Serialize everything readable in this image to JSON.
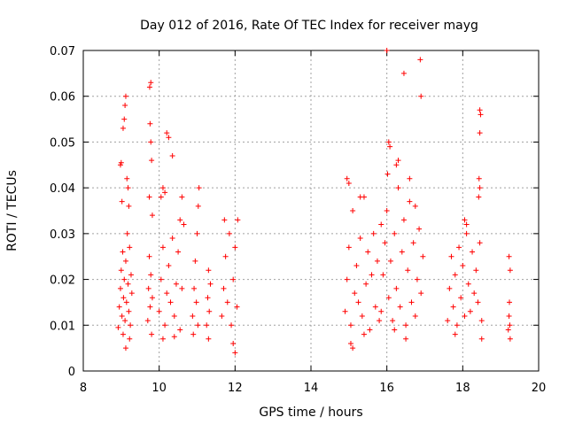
{
  "chart_data": {
    "type": "scatter",
    "title": "Day 012 of 2016, Rate Of TEC Index for receiver mayg",
    "xlabel": "GPS time / hours",
    "ylabel": "ROTI / TECUs",
    "xlim": [
      8,
      20
    ],
    "ylim": [
      0,
      0.07
    ],
    "xticks": [
      8,
      10,
      12,
      14,
      16,
      18,
      20
    ],
    "xtick_labels": [
      "8",
      "10",
      "12",
      "14",
      "16",
      "18",
      "20"
    ],
    "yticks": [
      0,
      0.01,
      0.02,
      0.03,
      0.04,
      0.05,
      0.06,
      0.07
    ],
    "ytick_labels": [
      "0",
      "0.01",
      "0.02",
      "0.03",
      "0.04",
      "0.05",
      "0.06",
      "0.07"
    ],
    "grid": true,
    "marker": "+",
    "marker_color": "#ff0000",
    "series": [
      {
        "name": "ROTI",
        "points": [
          [
            8.92,
            0.0095
          ],
          [
            8.95,
            0.014
          ],
          [
            8.98,
            0.018
          ],
          [
            9.0,
            0.022
          ],
          [
            9.02,
            0.012
          ],
          [
            9.04,
            0.026
          ],
          [
            9.05,
            0.008
          ],
          [
            9.06,
            0.016
          ],
          [
            9.08,
            0.02
          ],
          [
            9.1,
            0.011
          ],
          [
            9.12,
            0.024
          ],
          [
            9.14,
            0.015
          ],
          [
            9.16,
            0.03
          ],
          [
            9.18,
            0.019
          ],
          [
            9.2,
            0.013
          ],
          [
            9.22,
            0.027
          ],
          [
            9.24,
            0.01
          ],
          [
            9.26,
            0.021
          ],
          [
            9.28,
            0.017
          ],
          [
            9.0,
            0.0455
          ],
          [
            8.98,
            0.045
          ],
          [
            9.02,
            0.037
          ],
          [
            9.05,
            0.053
          ],
          [
            9.08,
            0.055
          ],
          [
            9.1,
            0.058
          ],
          [
            9.12,
            0.06
          ],
          [
            9.15,
            0.042
          ],
          [
            9.18,
            0.04
          ],
          [
            9.2,
            0.036
          ],
          [
            9.12,
            0.005
          ],
          [
            9.22,
            0.007
          ],
          [
            9.7,
            0.011
          ],
          [
            9.72,
            0.018
          ],
          [
            9.74,
            0.025
          ],
          [
            9.76,
            0.014
          ],
          [
            9.78,
            0.021
          ],
          [
            9.8,
            0.008
          ],
          [
            9.82,
            0.016
          ],
          [
            9.75,
            0.062
          ],
          [
            9.78,
            0.063
          ],
          [
            9.76,
            0.054
          ],
          [
            9.78,
            0.05
          ],
          [
            9.8,
            0.046
          ],
          [
            9.74,
            0.038
          ],
          [
            9.82,
            0.034
          ],
          [
            10.0,
            0.013
          ],
          [
            10.05,
            0.02
          ],
          [
            10.1,
            0.027
          ],
          [
            10.15,
            0.01
          ],
          [
            10.2,
            0.017
          ],
          [
            10.25,
            0.023
          ],
          [
            10.3,
            0.015
          ],
          [
            10.35,
            0.029
          ],
          [
            10.4,
            0.012
          ],
          [
            10.45,
            0.019
          ],
          [
            10.5,
            0.026
          ],
          [
            10.55,
            0.009
          ],
          [
            10.6,
            0.018
          ],
          [
            10.65,
            0.032
          ],
          [
            10.1,
            0.04
          ],
          [
            10.15,
            0.039
          ],
          [
            10.2,
            0.052
          ],
          [
            10.25,
            0.051
          ],
          [
            10.35,
            0.047
          ],
          [
            10.05,
            0.038
          ],
          [
            10.6,
            0.038
          ],
          [
            10.55,
            0.033
          ],
          [
            10.1,
            0.007
          ],
          [
            10.4,
            0.0075
          ],
          [
            10.88,
            0.012
          ],
          [
            10.92,
            0.018
          ],
          [
            10.95,
            0.024
          ],
          [
            10.98,
            0.015
          ],
          [
            11.0,
            0.03
          ],
          [
            11.02,
            0.01
          ],
          [
            11.05,
            0.04
          ],
          [
            11.03,
            0.036
          ],
          [
            10.9,
            0.008
          ],
          [
            11.25,
            0.01
          ],
          [
            11.28,
            0.016
          ],
          [
            11.3,
            0.022
          ],
          [
            11.32,
            0.013
          ],
          [
            11.35,
            0.019
          ],
          [
            11.3,
            0.007
          ],
          [
            11.65,
            0.012
          ],
          [
            11.7,
            0.018
          ],
          [
            11.75,
            0.025
          ],
          [
            11.8,
            0.015
          ],
          [
            11.85,
            0.03
          ],
          [
            11.9,
            0.01
          ],
          [
            11.95,
            0.02
          ],
          [
            12.0,
            0.027
          ],
          [
            12.05,
            0.014
          ],
          [
            12.07,
            0.033
          ],
          [
            11.95,
            0.006
          ],
          [
            12.0,
            0.004
          ],
          [
            11.72,
            0.033
          ],
          [
            14.9,
            0.013
          ],
          [
            14.95,
            0.02
          ],
          [
            15.0,
            0.027
          ],
          [
            15.05,
            0.01
          ],
          [
            15.1,
            0.035
          ],
          [
            15.15,
            0.017
          ],
          [
            15.2,
            0.023
          ],
          [
            15.25,
            0.015
          ],
          [
            15.3,
            0.029
          ],
          [
            15.35,
            0.012
          ],
          [
            15.4,
            0.038
          ],
          [
            15.45,
            0.019
          ],
          [
            15.5,
            0.026
          ],
          [
            15.55,
            0.009
          ],
          [
            15.6,
            0.021
          ],
          [
            15.65,
            0.03
          ],
          [
            15.7,
            0.014
          ],
          [
            15.75,
            0.024
          ],
          [
            15.8,
            0.011
          ],
          [
            15.85,
            0.032
          ],
          [
            14.95,
            0.042
          ],
          [
            15.0,
            0.041
          ],
          [
            15.3,
            0.038
          ],
          [
            15.05,
            0.006
          ],
          [
            15.1,
            0.005
          ],
          [
            15.4,
            0.008
          ],
          [
            15.85,
            0.013
          ],
          [
            15.9,
            0.021
          ],
          [
            15.95,
            0.028
          ],
          [
            16.0,
            0.035
          ],
          [
            16.05,
            0.016
          ],
          [
            16.1,
            0.024
          ],
          [
            16.15,
            0.011
          ],
          [
            16.2,
            0.03
          ],
          [
            16.25,
            0.018
          ],
          [
            16.3,
            0.04
          ],
          [
            16.35,
            0.014
          ],
          [
            16.4,
            0.026
          ],
          [
            16.45,
            0.033
          ],
          [
            16.5,
            0.01
          ],
          [
            16.55,
            0.022
          ],
          [
            16.6,
            0.037
          ],
          [
            16.65,
            0.015
          ],
          [
            16.7,
            0.028
          ],
          [
            16.75,
            0.012
          ],
          [
            16.8,
            0.02
          ],
          [
            16.85,
            0.031
          ],
          [
            16.9,
            0.017
          ],
          [
            16.95,
            0.025
          ],
          [
            16.0,
            0.07
          ],
          [
            16.05,
            0.05
          ],
          [
            16.08,
            0.049
          ],
          [
            16.02,
            0.043
          ],
          [
            16.3,
            0.046
          ],
          [
            16.25,
            0.045
          ],
          [
            16.45,
            0.065
          ],
          [
            16.6,
            0.042
          ],
          [
            16.75,
            0.036
          ],
          [
            16.88,
            0.068
          ],
          [
            16.9,
            0.06
          ],
          [
            16.2,
            0.009
          ],
          [
            16.5,
            0.007
          ],
          [
            17.6,
            0.011
          ],
          [
            17.65,
            0.018
          ],
          [
            17.7,
            0.025
          ],
          [
            17.75,
            0.014
          ],
          [
            17.8,
            0.021
          ],
          [
            17.85,
            0.01
          ],
          [
            17.9,
            0.027
          ],
          [
            17.95,
            0.016
          ],
          [
            18.0,
            0.023
          ],
          [
            18.05,
            0.012
          ],
          [
            18.1,
            0.03
          ],
          [
            18.15,
            0.019
          ],
          [
            18.2,
            0.013
          ],
          [
            18.25,
            0.026
          ],
          [
            18.3,
            0.017
          ],
          [
            18.35,
            0.022
          ],
          [
            18.4,
            0.015
          ],
          [
            18.45,
            0.028
          ],
          [
            18.5,
            0.011
          ],
          [
            18.45,
            0.057
          ],
          [
            18.47,
            0.056
          ],
          [
            18.45,
            0.052
          ],
          [
            18.43,
            0.042
          ],
          [
            18.45,
            0.04
          ],
          [
            18.42,
            0.038
          ],
          [
            18.05,
            0.033
          ],
          [
            18.1,
            0.032
          ],
          [
            17.8,
            0.008
          ],
          [
            18.5,
            0.007
          ],
          [
            19.2,
            0.009
          ],
          [
            19.22,
            0.012
          ],
          [
            19.23,
            0.015
          ],
          [
            19.24,
            0.01
          ],
          [
            19.25,
            0.007
          ],
          [
            19.22,
            0.025
          ],
          [
            19.25,
            0.022
          ]
        ]
      }
    ]
  }
}
